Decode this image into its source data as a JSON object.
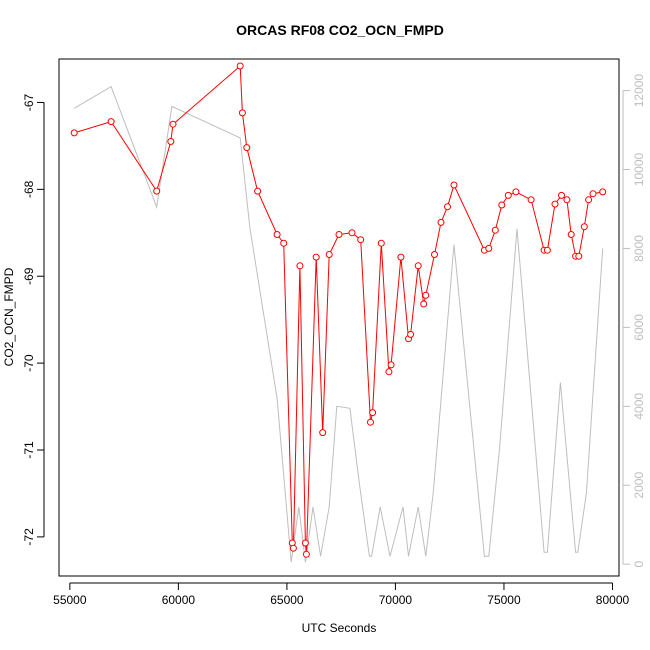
{
  "chart_data": {
    "type": "line",
    "title": "ORCAS RF08 CO2_OCN_FMPD",
    "xlabel": "UTC Seconds",
    "ylabel": "CO2_OCN_FMPD",
    "xlim": [
      54500,
      80300
    ],
    "ylim": [
      -72.45,
      -66.5
    ],
    "y2lim": [
      -300,
      12800
    ],
    "x_ticks": [
      55000,
      60000,
      65000,
      70000,
      75000,
      80000
    ],
    "y_ticks": [
      -72,
      -71,
      -70,
      -69,
      -68,
      -67
    ],
    "y2_ticks": [
      0,
      2000,
      4000,
      6000,
      8000,
      10000,
      12000
    ],
    "grid": false,
    "colors": {
      "primary": "#ff0000",
      "secondary": "#bebebe",
      "axis": "#000000"
    },
    "series": [
      {
        "axis": "left",
        "style": "line-with-circle-markers",
        "x": [
          55200,
          56900,
          59000,
          59650,
          59750,
          62850,
          62950,
          63150,
          63650,
          64550,
          64850,
          65250,
          65300,
          65600,
          65850,
          65900,
          66350,
          66650,
          66950,
          67400,
          68000,
          68400,
          68850,
          68950,
          69350,
          69700,
          69800,
          70250,
          70600,
          70700,
          71050,
          71300,
          71400,
          71800,
          72100,
          72400,
          72700,
          74100,
          74300,
          74600,
          74900,
          75200,
          75550,
          76250,
          76850,
          77000,
          77350,
          77650,
          77900,
          78100,
          78300,
          78450,
          78700,
          78900,
          79100,
          79550
        ],
        "values": [
          -67.35,
          -67.22,
          -68.02,
          -67.45,
          -67.25,
          -66.58,
          -67.12,
          -67.52,
          -68.02,
          -68.52,
          -68.62,
          -72.07,
          -72.13,
          -68.88,
          -72.07,
          -72.2,
          -68.78,
          -70.8,
          -68.75,
          -68.52,
          -68.5,
          -68.58,
          -70.68,
          -70.57,
          -68.62,
          -70.1,
          -70.02,
          -68.78,
          -69.72,
          -69.67,
          -68.88,
          -69.32,
          -69.22,
          -68.75,
          -68.38,
          -68.2,
          -67.95,
          -68.7,
          -68.68,
          -68.47,
          -68.18,
          -68.07,
          -68.03,
          -68.12,
          -68.7,
          -68.7,
          -68.17,
          -68.07,
          -68.12,
          -68.52,
          -68.77,
          -68.77,
          -68.43,
          -68.12,
          -68.05,
          -68.03
        ]
      },
      {
        "axis": "right",
        "style": "line",
        "x": [
          55200,
          56900,
          59000,
          59700,
          62850,
          63300,
          64550,
          65200,
          65550,
          65850,
          66200,
          66550,
          66950,
          67300,
          67900,
          68350,
          68800,
          68900,
          69300,
          69750,
          70350,
          70600,
          71050,
          71400,
          71750,
          72700,
          74100,
          74300,
          74800,
          75600,
          76850,
          77000,
          77600,
          78300,
          78400,
          78800,
          79550
        ],
        "values": [
          11550,
          12100,
          9050,
          11600,
          10800,
          8500,
          4200,
          50,
          1450,
          50,
          1450,
          200,
          1450,
          4000,
          3950,
          2000,
          200,
          200,
          1450,
          200,
          1450,
          200,
          1450,
          200,
          1850,
          8100,
          200,
          200,
          2950,
          8500,
          300,
          300,
          4600,
          300,
          300,
          1800,
          8000
        ]
      }
    ]
  }
}
